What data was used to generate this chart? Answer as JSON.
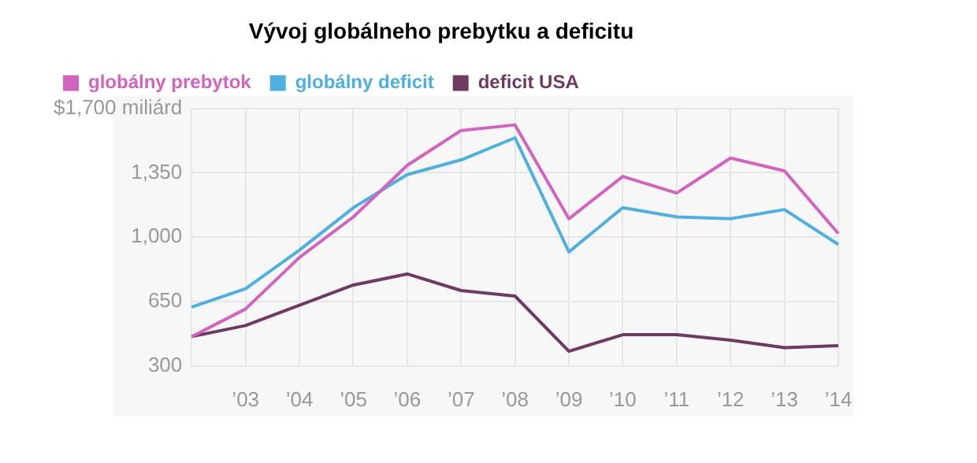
{
  "chart_data": {
    "type": "line",
    "title": "Vývoj globálneho prebytku a deficitu",
    "categories": [
      null,
      "’03",
      "’04",
      "’05",
      "’06",
      "’07",
      "’08",
      "’09",
      "’10",
      "’11",
      "’12",
      "’13",
      "’14"
    ],
    "series": [
      {
        "name": "globálny prebytok",
        "color": "#d264c0",
        "values": [
          460,
          610,
          890,
          1110,
          1390,
          1580,
          1610,
          1100,
          1330,
          1240,
          1430,
          1360,
          1020
        ]
      },
      {
        "name": "globálny deficit",
        "color": "#4fb0e0",
        "values": [
          620,
          720,
          930,
          1160,
          1340,
          1420,
          1540,
          920,
          1160,
          1110,
          1100,
          1150,
          960
        ]
      },
      {
        "name": "deficit USA",
        "color": "#6e3a62",
        "values": [
          460,
          520,
          630,
          740,
          800,
          710,
          680,
          380,
          470,
          470,
          440,
          400,
          410
        ]
      }
    ],
    "ylim": [
      300,
      1700
    ],
    "yticks": [
      300,
      650,
      {
        "value": 1000,
        "label": "1,000"
      },
      {
        "value": 1350,
        "label": "1,350"
      },
      {
        "value": 1700,
        "label": "$1,700 miliárd"
      }
    ],
    "grid": true,
    "legend": "top left",
    "marker": "none",
    "line_style": "solid"
  }
}
